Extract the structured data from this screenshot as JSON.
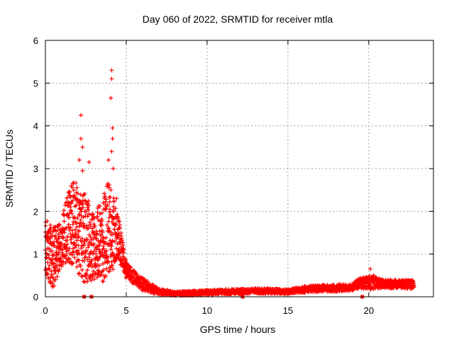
{
  "chart_data": {
    "type": "scatter",
    "title": "Day 060 of 2022, SRMTID for receiver mtla",
    "xlabel": "GPS time / hours",
    "ylabel": "SRMTID / TECUs",
    "xlim": [
      0,
      24
    ],
    "ylim": [
      0,
      6
    ],
    "x_ticks": [
      0,
      5,
      10,
      15,
      20
    ],
    "x_tick_labels": [
      "0",
      "5",
      "10",
      "15",
      "20"
    ],
    "y_ticks": [
      0,
      1,
      2,
      3,
      4,
      5,
      6
    ],
    "y_tick_labels": [
      "0",
      "1",
      "2",
      "3",
      "4",
      "5",
      "6"
    ],
    "grid": true,
    "marker": "+",
    "series": [
      {
        "name": "mtla",
        "color": "#ff0000",
        "envelope": [
          {
            "x": 0.0,
            "low": 0.5,
            "high": 1.9
          },
          {
            "x": 0.5,
            "low": 0.15,
            "high": 1.7
          },
          {
            "x": 1.0,
            "low": 0.7,
            "high": 1.8
          },
          {
            "x": 1.5,
            "low": 0.8,
            "high": 2.6
          },
          {
            "x": 2.0,
            "low": 0.5,
            "high": 2.8
          },
          {
            "x": 2.5,
            "low": 0.3,
            "high": 2.4
          },
          {
            "x": 3.0,
            "low": 0.4,
            "high": 2.0
          },
          {
            "x": 3.5,
            "low": 0.3,
            "high": 2.3
          },
          {
            "x": 4.0,
            "low": 0.5,
            "high": 2.8
          },
          {
            "x": 4.5,
            "low": 0.9,
            "high": 1.9
          },
          {
            "x": 5.0,
            "low": 0.4,
            "high": 0.8
          },
          {
            "x": 5.5,
            "low": 0.3,
            "high": 0.6
          },
          {
            "x": 6.0,
            "low": 0.15,
            "high": 0.45
          },
          {
            "x": 7.0,
            "low": 0.05,
            "high": 0.2
          },
          {
            "x": 8.0,
            "low": 0.03,
            "high": 0.12
          },
          {
            "x": 9.0,
            "low": 0.03,
            "high": 0.14
          },
          {
            "x": 10.0,
            "low": 0.05,
            "high": 0.16
          },
          {
            "x": 11.0,
            "low": 0.06,
            "high": 0.17
          },
          {
            "x": 12.0,
            "low": 0.06,
            "high": 0.18
          },
          {
            "x": 13.0,
            "low": 0.08,
            "high": 0.2
          },
          {
            "x": 14.0,
            "low": 0.07,
            "high": 0.19
          },
          {
            "x": 15.0,
            "low": 0.06,
            "high": 0.17
          },
          {
            "x": 16.0,
            "low": 0.1,
            "high": 0.25
          },
          {
            "x": 17.0,
            "low": 0.12,
            "high": 0.28
          },
          {
            "x": 18.0,
            "low": 0.12,
            "high": 0.28
          },
          {
            "x": 19.0,
            "low": 0.15,
            "high": 0.32
          },
          {
            "x": 19.5,
            "low": 0.2,
            "high": 0.45
          },
          {
            "x": 20.0,
            "low": 0.15,
            "high": 0.5
          },
          {
            "x": 21.0,
            "low": 0.2,
            "high": 0.4
          },
          {
            "x": 22.0,
            "low": 0.2,
            "high": 0.4
          },
          {
            "x": 22.8,
            "low": 0.18,
            "high": 0.38
          }
        ],
        "outliers": [
          {
            "x": 2.2,
            "y": 4.25
          },
          {
            "x": 2.2,
            "y": 3.7
          },
          {
            "x": 2.3,
            "y": 3.5
          },
          {
            "x": 2.1,
            "y": 3.2
          },
          {
            "x": 2.7,
            "y": 3.15
          },
          {
            "x": 2.3,
            "y": 2.95
          },
          {
            "x": 1.6,
            "y": 2.6
          },
          {
            "x": 3.9,
            "y": 3.2
          },
          {
            "x": 4.1,
            "y": 5.3
          },
          {
            "x": 4.1,
            "y": 5.1
          },
          {
            "x": 4.05,
            "y": 4.65
          },
          {
            "x": 4.15,
            "y": 3.95
          },
          {
            "x": 4.15,
            "y": 3.7
          },
          {
            "x": 4.1,
            "y": 3.4
          },
          {
            "x": 4.2,
            "y": 3.0
          },
          {
            "x": 4.05,
            "y": 2.5
          },
          {
            "x": 4.4,
            "y": 2.3
          },
          {
            "x": 20.1,
            "y": 0.65
          },
          {
            "x": 20.3,
            "y": 0.5
          }
        ],
        "zeros": [
          2.4,
          2.85,
          12.2,
          19.6
        ]
      }
    ]
  }
}
